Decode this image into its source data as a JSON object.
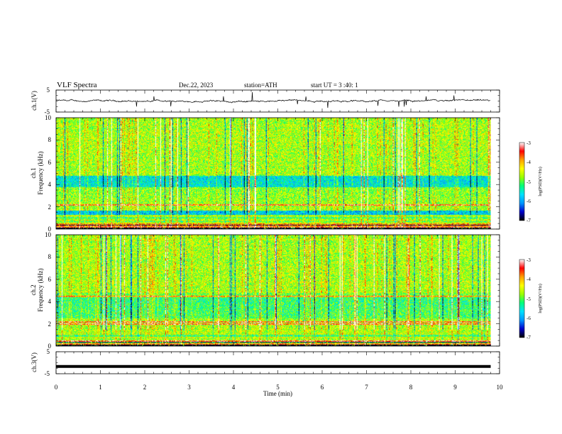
{
  "header": {
    "title": "VLF  Spectra",
    "date": "Dec.22, 2023",
    "station": "station=ATH",
    "start_ut": "start  UT  =   3  :40: 1"
  },
  "chart_data": [
    {
      "id": "ch1-waveform",
      "type": "line",
      "ylabel": "ch.1(V)",
      "ylim": [
        -5,
        5
      ],
      "yticks": [
        "5",
        "-5"
      ],
      "xlim": [
        0,
        10
      ],
      "trace_xmax": 9.8,
      "trace_color": "#000000"
    },
    {
      "id": "ch1-spectrogram",
      "type": "heatmap",
      "ylabel_line1": "ch.1",
      "ylabel_line2": "Frequency  (kHz)",
      "ylim": [
        0,
        10
      ],
      "yticks": [
        "0",
        "2",
        "4",
        "6",
        "8",
        "10"
      ],
      "xlim": [
        0,
        10
      ],
      "data_xmax": 9.8,
      "colorbar": {
        "label": "log(PSD)(V²/Hz)",
        "range": [
          -7,
          -3
        ],
        "ticks": [
          "-3",
          "-4",
          "-5",
          "-6",
          "-7"
        ],
        "colors": [
          "#000000",
          "#0000cc",
          "#0096ff",
          "#00e0ff",
          "#00ff7a",
          "#9aff00",
          "#ffff00",
          "#ffa000",
          "#ff0000",
          "#ffffff"
        ]
      },
      "bands_khz": [
        {
          "from": 1.3,
          "to": 1.7,
          "level": "strong-blue"
        },
        {
          "from": 3.8,
          "to": 4.8,
          "level": "blue"
        }
      ],
      "lines_khz": [
        0.2,
        0.3,
        0.5,
        2.2
      ]
    },
    {
      "id": "ch2-spectrogram",
      "type": "heatmap",
      "ylabel_line1": "ch.2",
      "ylabel_line2": "Frequency  (kHz)",
      "ylim": [
        0,
        10
      ],
      "yticks": [
        "0",
        "2",
        "4",
        "6",
        "8",
        "10"
      ],
      "xlim": [
        0,
        10
      ],
      "data_xmax": 9.8,
      "colorbar": {
        "label": "log(PSD)(V²/Hz)",
        "range": [
          -7,
          -3
        ],
        "ticks": [
          "-3",
          "-4",
          "-5",
          "-6",
          "-7"
        ],
        "colors": [
          "#000000",
          "#0000cc",
          "#0096ff",
          "#00e0ff",
          "#00ff7a",
          "#9aff00",
          "#ffff00",
          "#ffa000",
          "#ff0000",
          "#ffffff"
        ]
      },
      "lines_khz": [
        0.2,
        0.5,
        2.0,
        2.2,
        4.5
      ]
    },
    {
      "id": "ch3-waveform",
      "type": "line",
      "ylabel": "ch.3(V)",
      "ylim": [
        -5,
        5
      ],
      "yticks": [
        "5",
        "-5"
      ],
      "xlim": [
        0,
        10
      ],
      "trace_xmax": 9.8,
      "trace_level": -1.7,
      "xlabel": "Time  (min)",
      "xticks": [
        "0",
        "1",
        "2",
        "3",
        "4",
        "5",
        "6",
        "7",
        "8",
        "9",
        "10"
      ]
    }
  ]
}
